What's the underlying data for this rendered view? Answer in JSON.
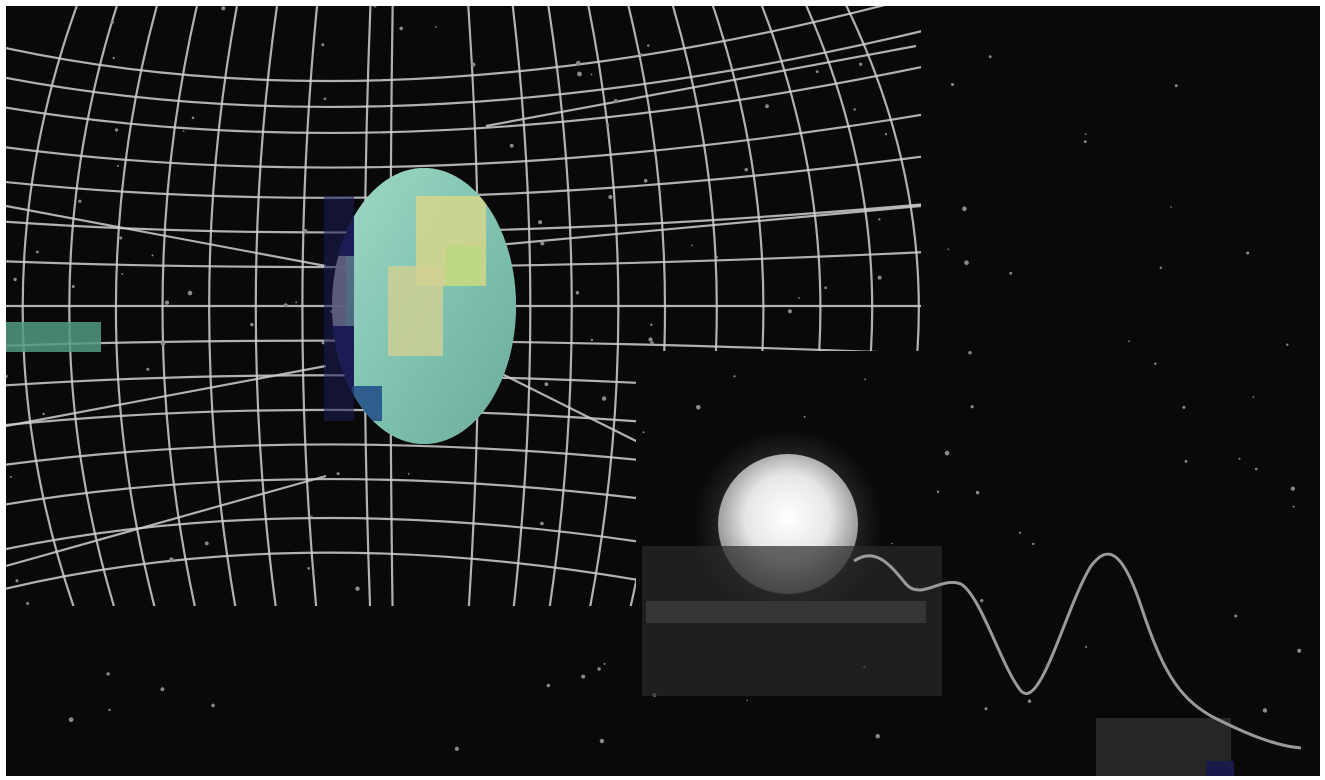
{
  "scene": {
    "description_visible_text": "",
    "colors": {
      "background": "#090909",
      "page_border": "#ffffff",
      "grid_lines": "#cfcfcf",
      "planet_teal": "#8fd1bf",
      "planet_yellow": "#d6d68a",
      "planet_navy": "#1b1b55",
      "moon_glow": "#f2f2f2",
      "wave_line": "#9a9a9a"
    },
    "icons": [
      "spacetime-grid-icon",
      "planet-icon",
      "moon-icon",
      "wave-icon"
    ]
  }
}
